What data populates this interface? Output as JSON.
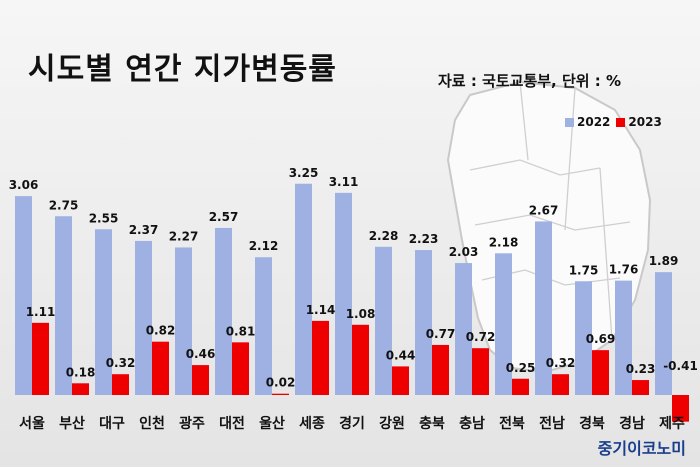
{
  "header": {
    "title": "시도별 연간 지가변동률",
    "source": "자료 : 국토교통부, 단위 : %"
  },
  "brand": "중기이코노미",
  "colors": {
    "series_2022": "#9fb1e2",
    "series_2023": "#ee0000",
    "label": "#111111"
  },
  "chart_data": {
    "type": "bar",
    "title": "시도별 연간 지가변동률",
    "xlabel": "",
    "ylabel": "",
    "unit": "%",
    "legend_position": "top-right",
    "grid": false,
    "ylim": [
      -0.5,
      3.3
    ],
    "categories": [
      "서울",
      "부산",
      "대구",
      "인천",
      "광주",
      "대전",
      "울산",
      "세종",
      "경기",
      "강원",
      "충북",
      "충남",
      "전북",
      "전남",
      "경북",
      "경남",
      "제주"
    ],
    "series": [
      {
        "name": "2022",
        "values": [
          3.06,
          2.75,
          2.55,
          2.37,
          2.27,
          2.57,
          2.12,
          3.25,
          3.11,
          2.28,
          2.23,
          2.03,
          2.18,
          2.67,
          1.75,
          1.76,
          1.89
        ]
      },
      {
        "name": "2023",
        "values": [
          1.11,
          0.18,
          0.32,
          0.82,
          0.46,
          0.81,
          0.02,
          1.14,
          1.08,
          0.44,
          0.77,
          0.72,
          0.25,
          0.32,
          0.69,
          0.23,
          -0.41
        ]
      }
    ]
  }
}
